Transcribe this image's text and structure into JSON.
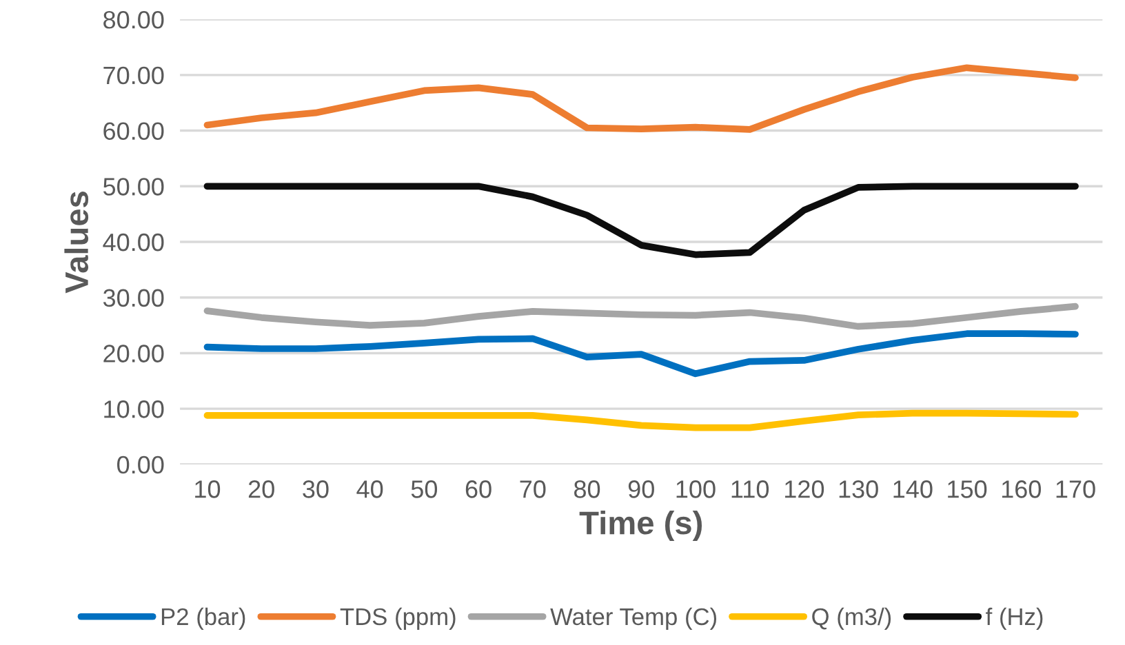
{
  "chart_data": {
    "type": "line",
    "xlabel": "Time (s)",
    "ylabel": "Values",
    "categories": [
      "10",
      "20",
      "30",
      "40",
      "50",
      "60",
      "70",
      "80",
      "90",
      "100",
      "110",
      "120",
      "130",
      "140",
      "150",
      "160",
      "170"
    ],
    "series": [
      {
        "name": "P2 (bar)",
        "color": "#0070c0",
        "values": [
          21.1,
          20.8,
          20.8,
          21.2,
          21.8,
          22.5,
          22.6,
          19.3,
          19.8,
          16.3,
          18.5,
          18.7,
          20.7,
          22.3,
          23.5,
          23.5,
          23.4
        ]
      },
      {
        "name": "TDS (ppm)",
        "color": "#ed7d31",
        "values": [
          61.0,
          62.3,
          63.2,
          65.2,
          67.2,
          67.7,
          66.5,
          60.5,
          60.3,
          60.6,
          60.2,
          63.8,
          67.0,
          69.6,
          71.3,
          70.4,
          69.5
        ]
      },
      {
        "name": "Water Temp (C)",
        "color": "#a5a5a5",
        "values": [
          27.6,
          26.4,
          25.6,
          25.0,
          25.4,
          26.6,
          27.5,
          27.2,
          26.9,
          26.8,
          27.3,
          26.3,
          24.8,
          25.3,
          26.4,
          27.5,
          28.4
        ]
      },
      {
        "name": "Q (m3/)",
        "color": "#ffc000",
        "values": [
          8.8,
          8.8,
          8.8,
          8.8,
          8.8,
          8.8,
          8.8,
          8.0,
          7.0,
          6.6,
          6.6,
          7.8,
          8.9,
          9.2,
          9.2,
          9.1,
          9.0
        ]
      },
      {
        "name": "f (Hz)",
        "color": "#0d0d0d",
        "values": [
          50,
          50,
          50,
          50,
          50,
          50,
          48.1,
          44.8,
          39.4,
          37.7,
          38.1,
          45.7,
          49.8,
          50,
          50,
          50,
          50
        ]
      }
    ],
    "ylim": [
      0,
      80
    ],
    "yticks": [
      {
        "value": 0,
        "label": "0.00"
      },
      {
        "value": 10,
        "label": "10.00"
      },
      {
        "value": 20,
        "label": "20.00"
      },
      {
        "value": 30,
        "label": "30.00"
      },
      {
        "value": 40,
        "label": "40.00"
      },
      {
        "value": 50,
        "label": "50.00"
      },
      {
        "value": 60,
        "label": "60.00"
      },
      {
        "value": 70,
        "label": "70.00"
      },
      {
        "value": 80,
        "label": "80.00"
      }
    ],
    "grid": "y",
    "legend": "bottom",
    "marker": "none",
    "line_style": "solid"
  }
}
